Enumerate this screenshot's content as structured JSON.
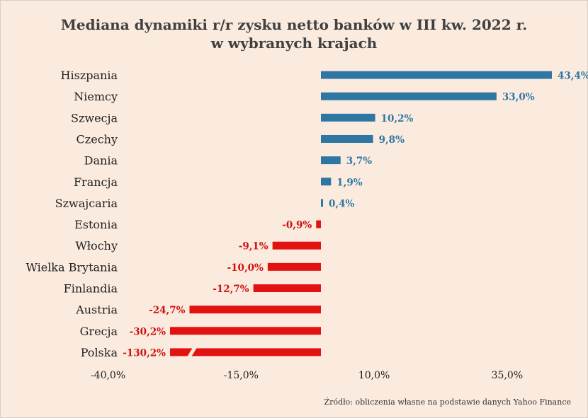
{
  "chart_data": {
    "type": "bar",
    "orientation": "horizontal",
    "title_line1": "Mediana dynamiki r/r zysku netto banków w III kw. 2022 r.",
    "title_line2": "w wybranych krajach",
    "categories": [
      "Hiszpania",
      "Niemcy",
      "Szwecja",
      "Czechy",
      "Dania",
      "Francja",
      "Szwajcaria",
      "Estonia",
      "Włochy",
      "Wielka Brytania",
      "Finlandia",
      "Austria",
      "Grecja",
      "Polska"
    ],
    "values": [
      43.4,
      33.0,
      10.2,
      9.8,
      3.7,
      1.9,
      0.4,
      -0.9,
      -9.1,
      -10.0,
      -12.7,
      -24.7,
      -30.2,
      -130.2
    ],
    "data_labels": [
      "43,4%",
      "33,0%",
      "10,2%",
      "9,8%",
      "3,7%",
      "1,9%",
      "0,4%",
      "-0,9%",
      "-9,1%",
      "-10,0%",
      "-12,7%",
      "-24,7%",
      "-30,2%",
      "-130,2%"
    ],
    "broken_bar_category": "Polska",
    "xlim": [
      -40,
      50
    ],
    "xticks": [
      -40,
      -15,
      10,
      35
    ],
    "xtick_labels": [
      "-40,0%",
      "-15,0%",
      "10,0%",
      "35,0%"
    ],
    "grid": false,
    "colors": {
      "positive": "#2e77a3",
      "negative": "#e3110f",
      "positive_label": "#2e77a3",
      "negative_label": "#d0100e"
    }
  },
  "source": "Źródło: obliczenia własne na podstawie danych Yahoo Finance"
}
